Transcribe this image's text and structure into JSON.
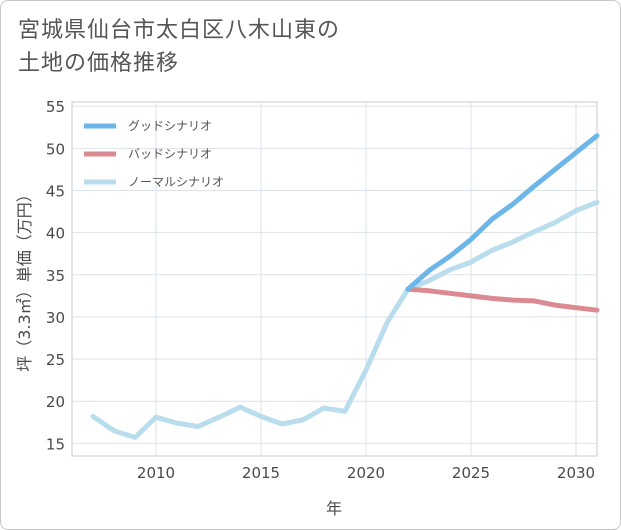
{
  "title": {
    "line1": "宮城県仙台市太白区八木山東の",
    "line2": "土地の価格推移"
  },
  "chart_data": {
    "type": "line",
    "title": "宮城県仙台市太白区八木山東の土地の価格推移",
    "xlabel": "年",
    "ylabel": "坪（3.3㎡）単価（万円）",
    "xlim": [
      2006,
      2031
    ],
    "ylim": [
      13.5,
      55.5
    ],
    "xticks": [
      2010,
      2015,
      2020,
      2025,
      2030
    ],
    "yticks": [
      15,
      20,
      25,
      30,
      35,
      40,
      45,
      50,
      55
    ],
    "grid": true,
    "legend_position": "top-left",
    "series": [
      {
        "name": "グッドシナリオ",
        "color": "#6cb6e8",
        "x": [
          2022,
          2023,
          2024,
          2025,
          2026,
          2027,
          2028,
          2029,
          2030,
          2031
        ],
        "values": [
          33.3,
          35.5,
          37.2,
          39.2,
          41.6,
          43.4,
          45.5,
          47.5,
          49.5,
          51.5
        ]
      },
      {
        "name": "バッドシナリオ",
        "color": "#dc8a91",
        "x": [
          2022,
          2023,
          2024,
          2025,
          2026,
          2027,
          2028,
          2029,
          2030,
          2031
        ],
        "values": [
          33.3,
          33.1,
          32.8,
          32.5,
          32.2,
          32.0,
          31.9,
          31.4,
          31.1,
          30.8
        ]
      },
      {
        "name": "ノーマルシナリオ",
        "color": "#b9dded",
        "x": [
          2007,
          2008,
          2009,
          2010,
          2011,
          2012,
          2013,
          2014,
          2015,
          2016,
          2017,
          2018,
          2019,
          2020,
          2021,
          2022,
          2023,
          2024,
          2025,
          2026,
          2027,
          2028,
          2029,
          2030,
          2031
        ],
        "values": [
          18.2,
          16.5,
          15.7,
          18.1,
          17.4,
          17.0,
          18.1,
          19.3,
          18.2,
          17.3,
          17.8,
          19.2,
          18.8,
          23.7,
          29.3,
          33.3,
          34.3,
          35.6,
          36.5,
          37.9,
          38.9,
          40.1,
          41.2,
          42.6,
          43.6
        ]
      }
    ]
  }
}
